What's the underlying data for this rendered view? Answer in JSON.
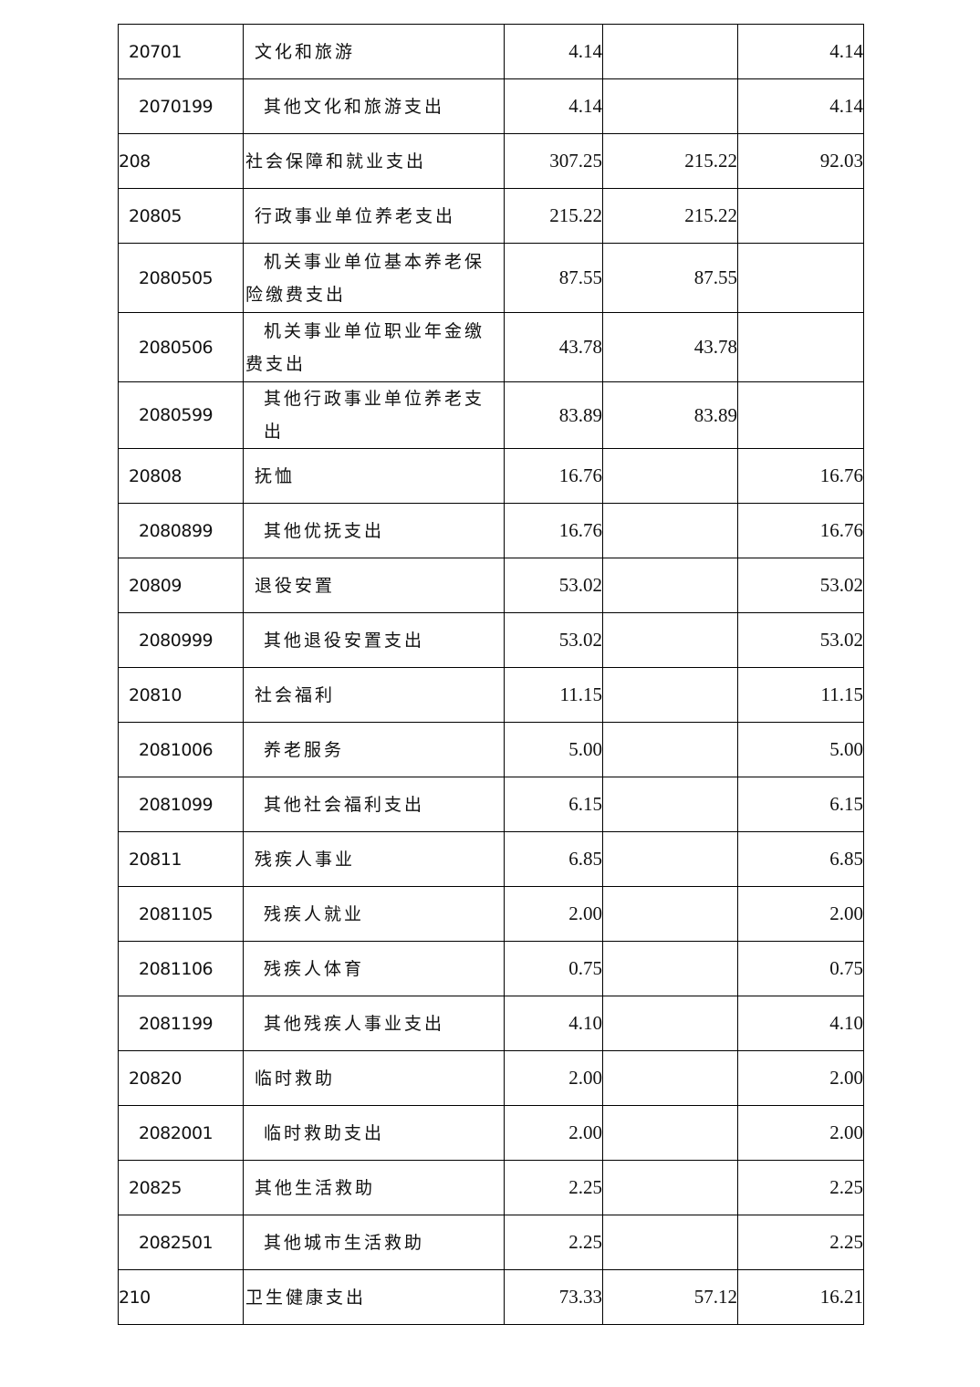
{
  "table": {
    "rows": [
      {
        "level": 1,
        "code": "20701",
        "name": "文化和旅游",
        "total": "4.14",
        "basic": "",
        "project": "4.14"
      },
      {
        "level": 2,
        "code": "2070199",
        "name": "其他文化和旅游支出",
        "total": "4.14",
        "basic": "",
        "project": "4.14"
      },
      {
        "level": 0,
        "code": "208",
        "name": "社会保障和就业支出",
        "total": "307.25",
        "basic": "215.22",
        "project": "92.03"
      },
      {
        "level": 1,
        "code": "20805",
        "name": "行政事业单位养老支出",
        "total": "215.22",
        "basic": "215.22",
        "project": ""
      },
      {
        "level": 2,
        "code": "2080505",
        "name": "机关事业单位基本养老保险缴费支出",
        "total": "87.55",
        "basic": "87.55",
        "project": "",
        "tall": true
      },
      {
        "level": 2,
        "code": "2080506",
        "name": "机关事业单位职业年金缴费支出",
        "total": "43.78",
        "basic": "43.78",
        "project": "",
        "tall": true
      },
      {
        "level": 2,
        "code": "2080599",
        "name": "其他行政事业单位养老支出",
        "total": "83.89",
        "basic": "83.89",
        "project": ""
      },
      {
        "level": 1,
        "code": "20808",
        "name": "抚恤",
        "total": "16.76",
        "basic": "",
        "project": "16.76"
      },
      {
        "level": 2,
        "code": "2080899",
        "name": "其他优抚支出",
        "total": "16.76",
        "basic": "",
        "project": "16.76"
      },
      {
        "level": 1,
        "code": "20809",
        "name": "退役安置",
        "total": "53.02",
        "basic": "",
        "project": "53.02"
      },
      {
        "level": 2,
        "code": "2080999",
        "name": "其他退役安置支出",
        "total": "53.02",
        "basic": "",
        "project": "53.02"
      },
      {
        "level": 1,
        "code": "20810",
        "name": "社会福利",
        "total": "11.15",
        "basic": "",
        "project": "11.15"
      },
      {
        "level": 2,
        "code": "2081006",
        "name": "养老服务",
        "total": "5.00",
        "basic": "",
        "project": "5.00"
      },
      {
        "level": 2,
        "code": "2081099",
        "name": "其他社会福利支出",
        "total": "6.15",
        "basic": "",
        "project": "6.15"
      },
      {
        "level": 1,
        "code": "20811",
        "name": "残疾人事业",
        "total": "6.85",
        "basic": "",
        "project": "6.85"
      },
      {
        "level": 2,
        "code": "2081105",
        "name": "残疾人就业",
        "total": "2.00",
        "basic": "",
        "project": "2.00"
      },
      {
        "level": 2,
        "code": "2081106",
        "name": "残疾人体育",
        "total": "0.75",
        "basic": "",
        "project": "0.75"
      },
      {
        "level": 2,
        "code": "2081199",
        "name": "其他残疾人事业支出",
        "total": "4.10",
        "basic": "",
        "project": "4.10"
      },
      {
        "level": 1,
        "code": "20820",
        "name": "临时救助",
        "total": "2.00",
        "basic": "",
        "project": "2.00"
      },
      {
        "level": 2,
        "code": "2082001",
        "name": "临时救助支出",
        "total": "2.00",
        "basic": "",
        "project": "2.00"
      },
      {
        "level": 1,
        "code": "20825",
        "name": "其他生活救助",
        "total": "2.25",
        "basic": "",
        "project": "2.25"
      },
      {
        "level": 2,
        "code": "2082501",
        "name": "其他城市生活救助",
        "total": "2.25",
        "basic": "",
        "project": "2.25"
      },
      {
        "level": 0,
        "code": "210",
        "name": "卫生健康支出",
        "total": "73.33",
        "basic": "57.12",
        "project": "16.21"
      }
    ]
  }
}
